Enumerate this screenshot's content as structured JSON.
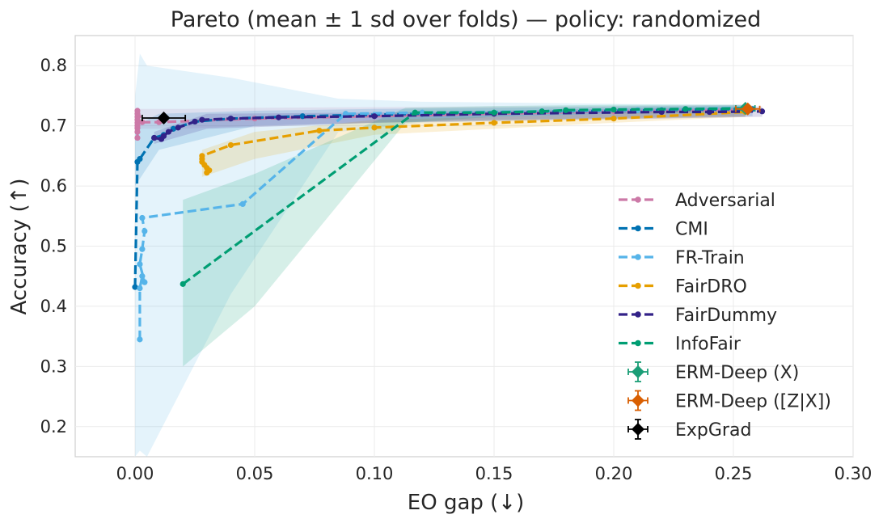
{
  "chart_data": {
    "type": "line",
    "title": "Pareto (mean ± 1 sd over folds) — policy: randomized",
    "xlabel": "EO gap (↓)",
    "ylabel": "Accuracy (↑)",
    "xlim": [
      -0.025,
      0.3
    ],
    "ylim": [
      0.15,
      0.85
    ],
    "xticks": [
      0.0,
      0.05,
      0.1,
      0.15,
      0.2,
      0.25,
      0.3
    ],
    "xtick_labels": [
      "0.00",
      "0.05",
      "0.10",
      "0.15",
      "0.20",
      "0.25",
      "0.30"
    ],
    "yticks": [
      0.2,
      0.3,
      0.4,
      0.5,
      0.6,
      0.7,
      0.8
    ],
    "ytick_labels": [
      "0.2",
      "0.3",
      "0.4",
      "0.5",
      "0.6",
      "0.7",
      "0.8"
    ],
    "grid": true,
    "legend_position": "lower-right",
    "series": [
      {
        "name": "Adversarial",
        "color": "#CC79A7",
        "style": "dashed-marker",
        "points": [
          [
            0.001,
            0.68
          ],
          [
            0.001,
            0.69
          ],
          [
            0.001,
            0.696
          ],
          [
            0.001,
            0.7
          ],
          [
            0.001,
            0.705
          ],
          [
            0.001,
            0.71
          ],
          [
            0.001,
            0.715
          ],
          [
            0.001,
            0.72
          ],
          [
            0.001,
            0.725
          ],
          [
            0.003,
            0.706
          ],
          [
            0.01,
            0.706
          ],
          [
            0.05,
            0.712
          ],
          [
            0.1,
            0.716
          ],
          [
            0.15,
            0.72
          ],
          [
            0.2,
            0.724
          ],
          [
            0.255,
            0.727
          ]
        ],
        "band": {
          "x": [
            0.001,
            0.02,
            0.05,
            0.1,
            0.15,
            0.2,
            0.255
          ],
          "lower": [
            0.695,
            0.695,
            0.7,
            0.705,
            0.71,
            0.712,
            0.715
          ],
          "upper": [
            0.728,
            0.728,
            0.73,
            0.731,
            0.732,
            0.733,
            0.735
          ]
        }
      },
      {
        "name": "CMI",
        "color": "#0072B2",
        "style": "dashed-marker",
        "points": [
          [
            0.0,
            0.432
          ],
          [
            0.001,
            0.64
          ],
          [
            0.002,
            0.645
          ],
          [
            0.008,
            0.68
          ],
          [
            0.012,
            0.685
          ],
          [
            0.016,
            0.695
          ],
          [
            0.025,
            0.707
          ],
          [
            0.04,
            0.712
          ],
          [
            0.07,
            0.716
          ],
          [
            0.12,
            0.72
          ],
          [
            0.18,
            0.724
          ],
          [
            0.22,
            0.726
          ],
          [
            0.258,
            0.728
          ]
        ],
        "band": {
          "x": [
            0.0,
            0.01,
            0.05,
            0.1,
            0.15,
            0.2,
            0.258
          ],
          "lower": [
            0.6,
            0.66,
            0.7,
            0.705,
            0.71,
            0.713,
            0.716
          ],
          "upper": [
            0.7,
            0.72,
            0.725,
            0.728,
            0.73,
            0.732,
            0.734
          ]
        }
      },
      {
        "name": "FR-Train",
        "color": "#56B4E9",
        "style": "dashed-marker",
        "points": [
          [
            0.002,
            0.345
          ],
          [
            0.002,
            0.43
          ],
          [
            0.003,
            0.45
          ],
          [
            0.004,
            0.44
          ],
          [
            0.002,
            0.47
          ],
          [
            0.003,
            0.495
          ],
          [
            0.004,
            0.525
          ],
          [
            0.003,
            0.547
          ],
          [
            0.045,
            0.57
          ],
          [
            0.088,
            0.72
          ],
          [
            0.12,
            0.722
          ],
          [
            0.17,
            0.724
          ],
          [
            0.21,
            0.726
          ],
          [
            0.255,
            0.73
          ]
        ],
        "band": {
          "x": [
            0.0,
            0.002,
            0.005,
            0.04,
            0.085,
            0.12,
            0.17,
            0.21,
            0.255
          ],
          "lower": [
            0.15,
            0.16,
            0.15,
            0.42,
            0.69,
            0.705,
            0.71,
            0.712,
            0.715
          ],
          "upper": [
            0.75,
            0.82,
            0.8,
            0.78,
            0.745,
            0.74,
            0.738,
            0.736,
            0.735
          ]
        }
      },
      {
        "name": "FairDRO",
        "color": "#E69F00",
        "style": "dashed-marker",
        "points": [
          [
            0.03,
            0.622
          ],
          [
            0.031,
            0.626
          ],
          [
            0.03,
            0.63
          ],
          [
            0.029,
            0.635
          ],
          [
            0.028,
            0.64
          ],
          [
            0.028,
            0.645
          ],
          [
            0.028,
            0.65
          ],
          [
            0.04,
            0.668
          ],
          [
            0.077,
            0.692
          ],
          [
            0.1,
            0.697
          ],
          [
            0.15,
            0.705
          ],
          [
            0.2,
            0.712
          ],
          [
            0.255,
            0.723
          ]
        ],
        "band": {
          "x": [
            0.028,
            0.05,
            0.1,
            0.15,
            0.2,
            0.255
          ],
          "lower": [
            0.615,
            0.645,
            0.685,
            0.695,
            0.705,
            0.715
          ],
          "upper": [
            0.66,
            0.69,
            0.71,
            0.715,
            0.72,
            0.73
          ]
        }
      },
      {
        "name": "FairDummy",
        "color": "#332288",
        "style": "dashed-marker",
        "points": [
          [
            0.008,
            0.68
          ],
          [
            0.011,
            0.678
          ],
          [
            0.012,
            0.683
          ],
          [
            0.014,
            0.69
          ],
          [
            0.018,
            0.697
          ],
          [
            0.025,
            0.707
          ],
          [
            0.028,
            0.71
          ],
          [
            0.04,
            0.712
          ],
          [
            0.06,
            0.714
          ],
          [
            0.1,
            0.716
          ],
          [
            0.15,
            0.72
          ],
          [
            0.22,
            0.723
          ],
          [
            0.24,
            0.723
          ],
          [
            0.262,
            0.724
          ]
        ],
        "band": {
          "x": [
            0.008,
            0.03,
            0.1,
            0.15,
            0.22,
            0.262
          ],
          "lower": [
            0.67,
            0.695,
            0.705,
            0.708,
            0.712,
            0.715
          ],
          "upper": [
            0.69,
            0.72,
            0.722,
            0.725,
            0.73,
            0.732
          ]
        }
      },
      {
        "name": "InfoFair",
        "color": "#009E73",
        "style": "dashed-marker",
        "points": [
          [
            0.02,
            0.437
          ],
          [
            0.117,
            0.722
          ],
          [
            0.15,
            0.722
          ],
          [
            0.17,
            0.724
          ],
          [
            0.18,
            0.726
          ],
          [
            0.2,
            0.727
          ],
          [
            0.23,
            0.728
          ],
          [
            0.256,
            0.729
          ]
        ],
        "band": {
          "x": [
            0.02,
            0.05,
            0.113,
            0.15,
            0.2,
            0.256
          ],
          "lower": [
            0.3,
            0.4,
            0.705,
            0.715,
            0.72,
            0.722
          ],
          "upper": [
            0.577,
            0.62,
            0.73,
            0.733,
            0.735,
            0.735
          ]
        }
      }
    ],
    "baselines": [
      {
        "name": "ERM-Deep (X)",
        "color": "#1b9e77",
        "marker": "diamond",
        "x": 0.255,
        "y": 0.729,
        "xerr": 0.004,
        "yerr": 0.001
      },
      {
        "name": "ERM-Deep ([Z|X])",
        "color": "#d95f02",
        "marker": "diamond",
        "x": 0.256,
        "y": 0.728,
        "xerr": 0.005,
        "yerr": 0.001
      },
      {
        "name": "ExpGrad",
        "color": "#000000",
        "marker": "diamond",
        "x": 0.012,
        "y": 0.713,
        "xerr": 0.009,
        "yerr": 0.002
      }
    ]
  }
}
